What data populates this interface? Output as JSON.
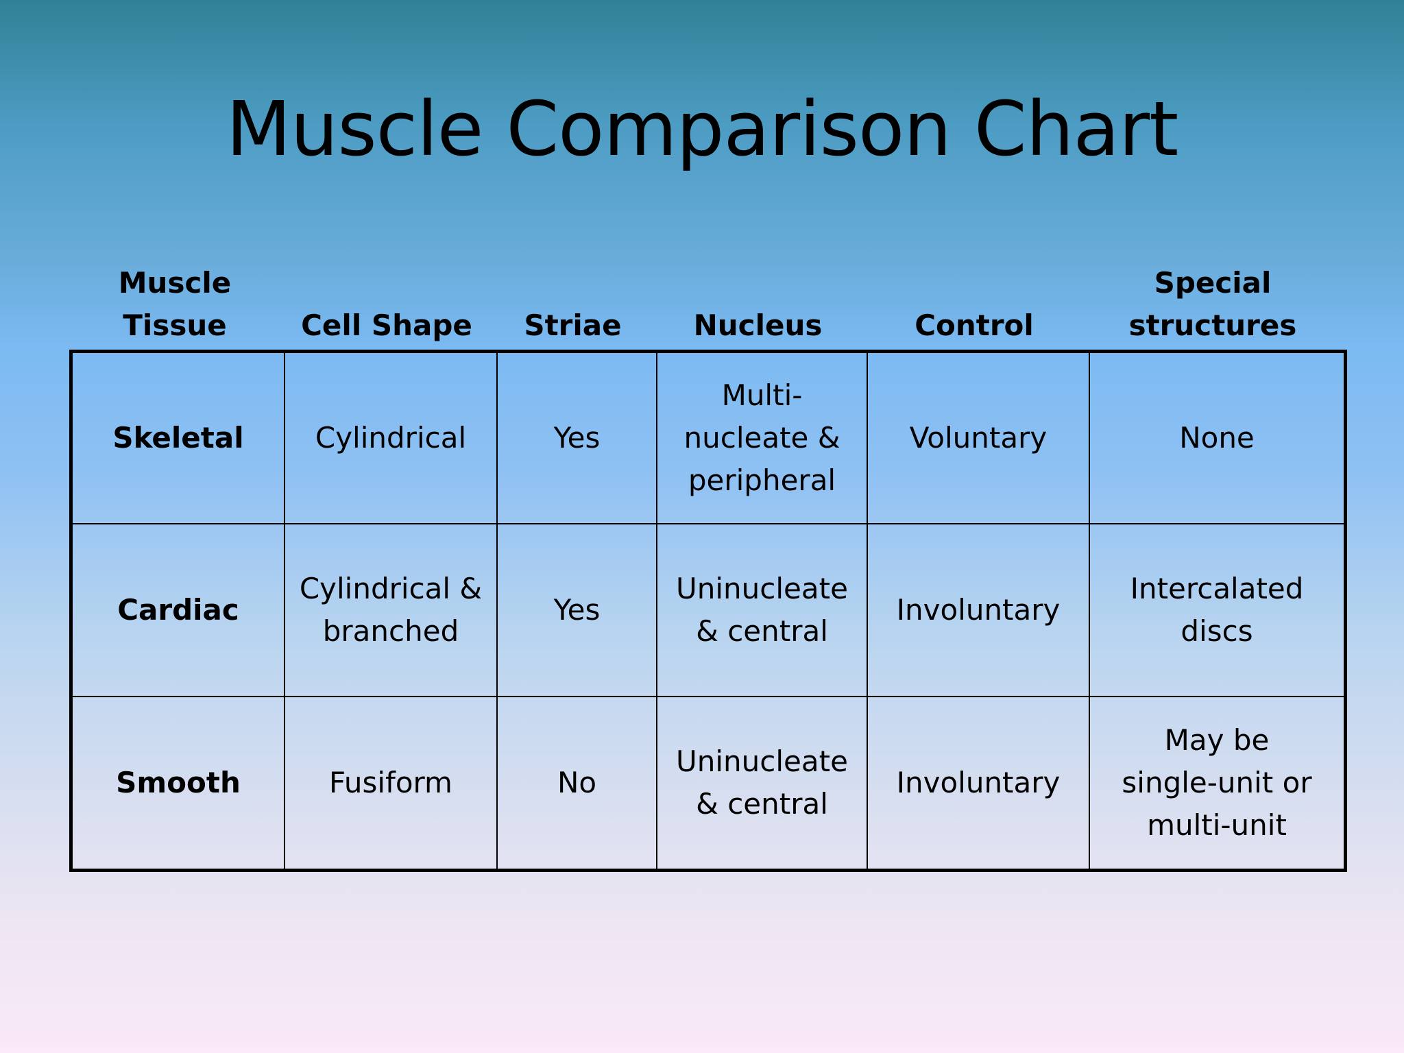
{
  "title": "Muscle Comparison Chart",
  "table": {
    "headers": [
      "Muscle\nTissue",
      "Cell Shape",
      "Striae",
      "Nucleus",
      "Control",
      "Special\nstructures"
    ],
    "rows": [
      [
        "Skeletal",
        "Cylindrical",
        "Yes",
        "Multi-\nnucleate &\nperipheral",
        "Voluntary",
        "None"
      ],
      [
        "Cardiac",
        "Cylindrical &\nbranched",
        "Yes",
        "Uninucleate\n& central",
        "Involuntary",
        "Intercalated\ndiscs"
      ],
      [
        "Smooth",
        "Fusiform",
        "No",
        "Uninucleate\n& central",
        "Involuntary",
        "May be\nsingle-unit or\nmulti-unit"
      ]
    ]
  }
}
